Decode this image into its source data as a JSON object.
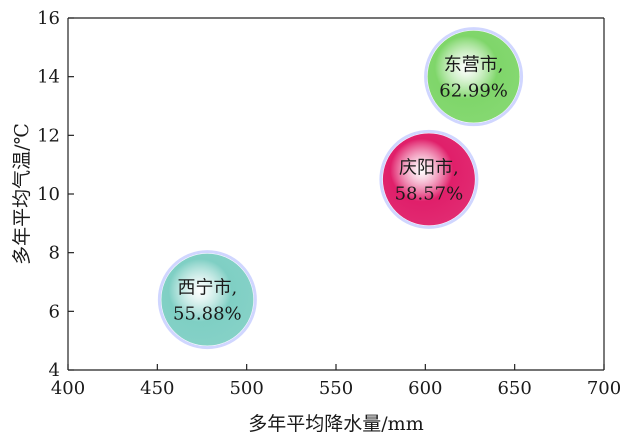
{
  "chart_data": {
    "type": "scatter",
    "xlabel": "多年平均降水量/mm",
    "ylabel": "多年平均气温/℃",
    "xlim": [
      400,
      700
    ],
    "ylim": [
      4,
      16
    ],
    "xticks": [
      "400",
      "450",
      "500",
      "550",
      "600",
      "650",
      "700"
    ],
    "yticks": [
      "4",
      "6",
      "8",
      "10",
      "12",
      "14",
      "16"
    ],
    "points": [
      {
        "city": "西宁市,",
        "percent": "55.88%",
        "x": 478,
        "y": 6.4,
        "color": "#7fcfc4"
      },
      {
        "city": "庆阳市,",
        "percent": "58.57%",
        "x": 602,
        "y": 10.5,
        "color": "#e01f6a"
      },
      {
        "city": "东营市,",
        "percent": "62.99%",
        "x": 627,
        "y": 14.0,
        "color": "#7fd66a"
      }
    ]
  }
}
